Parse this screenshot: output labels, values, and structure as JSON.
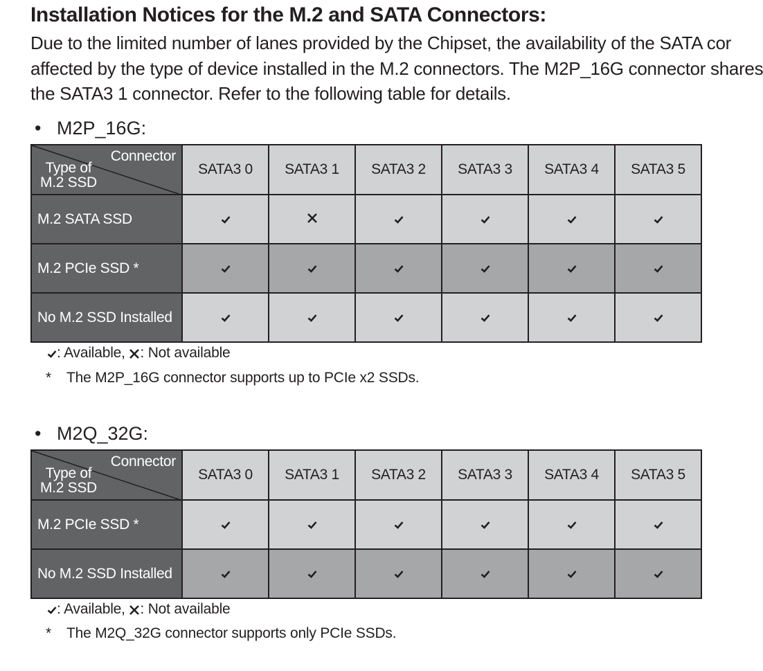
{
  "title": "Installation Notices for the M.2 and SATA Connectors:",
  "intro_lines": [
    "Due to the limited number of lanes provided by the Chipset, the availability of the SATA cor",
    "affected by the type of device installed in the M.2 connectors. The M2P_16G connector shares",
    "the SATA3 1 connector. Refer to the following table for details."
  ],
  "sections": [
    {
      "bullet": "•",
      "heading": "M2P_16G:",
      "corner_top": "Connector",
      "corner_bottom_1": "Type of",
      "corner_bottom_2": "M.2 SSD",
      "columns": [
        "SATA3 0",
        "SATA3 1",
        "SATA3 2",
        "SATA3 3",
        "SATA3 4",
        "SATA3 5"
      ],
      "rows": [
        {
          "label": "M.2 SATA SSD",
          "marks": [
            "check-icon",
            "cross-icon",
            "check-icon",
            "check-icon",
            "check-icon",
            "check-icon"
          ]
        },
        {
          "label": "M.2 PCIe SSD *",
          "marks": [
            "check-icon",
            "check-icon",
            "check-icon",
            "check-icon",
            "check-icon",
            "check-icon"
          ]
        },
        {
          "label": "No M.2 SSD Installed",
          "marks": [
            "check-icon",
            "check-icon",
            "check-icon",
            "check-icon",
            "check-icon",
            "check-icon"
          ]
        }
      ],
      "legend_available": ": Available,",
      "legend_not_available": ": Not available",
      "note_star": "*",
      "note": "The M2P_16G connector supports up to PCIe x2 SSDs."
    },
    {
      "bullet": "•",
      "heading": "M2Q_32G:",
      "corner_top": "Connector",
      "corner_bottom_1": "Type of",
      "corner_bottom_2": "M.2 SSD",
      "columns": [
        "SATA3 0",
        "SATA3 1",
        "SATA3 2",
        "SATA3 3",
        "SATA3 4",
        "SATA3 5"
      ],
      "rows": [
        {
          "label": "M.2 PCIe SSD *",
          "marks": [
            "check-icon",
            "check-icon",
            "check-icon",
            "check-icon",
            "check-icon",
            "check-icon"
          ]
        },
        {
          "label": "No M.2 SSD Installed",
          "marks": [
            "check-icon",
            "check-icon",
            "check-icon",
            "check-icon",
            "check-icon",
            "check-icon"
          ]
        }
      ],
      "legend_available": ": Available,",
      "legend_not_available": ": Not available",
      "note_star": "*",
      "note": "The M2Q_32G connector supports only PCIe SSDs."
    }
  ],
  "colors": {
    "text": "#231f20",
    "header_dark": "#626365",
    "cell_light": "#d1d2d3",
    "cell_dark": "#a6a7a9"
  }
}
